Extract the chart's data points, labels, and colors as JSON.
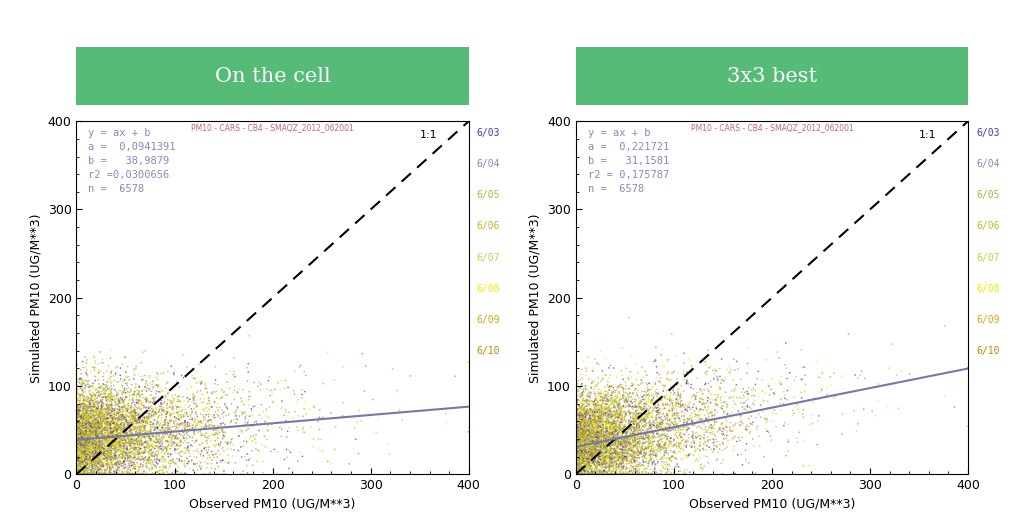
{
  "panel1_title": "On the cell",
  "panel2_title": "3x3 best",
  "subtitle": "PM10 - CARS - CB4 - SMAQZ_2012_062001",
  "xlabel": "Observed PM10 (UG/M**3)",
  "ylabel": "Simulated PM10 (UG/M**3)",
  "xlim": [
    0,
    400
  ],
  "ylim": [
    0,
    400
  ],
  "xticks": [
    0,
    100,
    200,
    300,
    400
  ],
  "yticks": [
    0,
    100,
    200,
    300,
    400
  ],
  "panel1_stats_lines": [
    "y = ax + b",
    "a =  0,0941391",
    "b =   38,9879",
    "r2 =0,0300656",
    "n =  6578"
  ],
  "panel2_stats_lines": [
    "y = ax + b",
    "a =  0,221721",
    "b =   31,1581",
    "r2 = 0,175787",
    "n =  6578"
  ],
  "panel1_reg": {
    "a": 0.0941391,
    "b": 38.9879
  },
  "panel2_reg": {
    "a": 0.221721,
    "b": 31.1581
  },
  "months": [
    "6/03",
    "6/04",
    "6/05",
    "6/06",
    "6/07",
    "6/08",
    "6/09",
    "6/10"
  ],
  "month_colors": [
    "#5533bb",
    "#8888aa",
    "#aabb44",
    "#bbbb22",
    "#cccc44",
    "#eeee00",
    "#ccaa00",
    "#bb8800"
  ],
  "n_points": 6578,
  "title_bg_color": "#55bb77",
  "title_text_color": "#ffffff",
  "stats_text_color": "#8888bb",
  "reg_line_color": "#7777aa",
  "background_color": "#ffffff",
  "panel_bg_color": "#ffffff",
  "seed": 42
}
